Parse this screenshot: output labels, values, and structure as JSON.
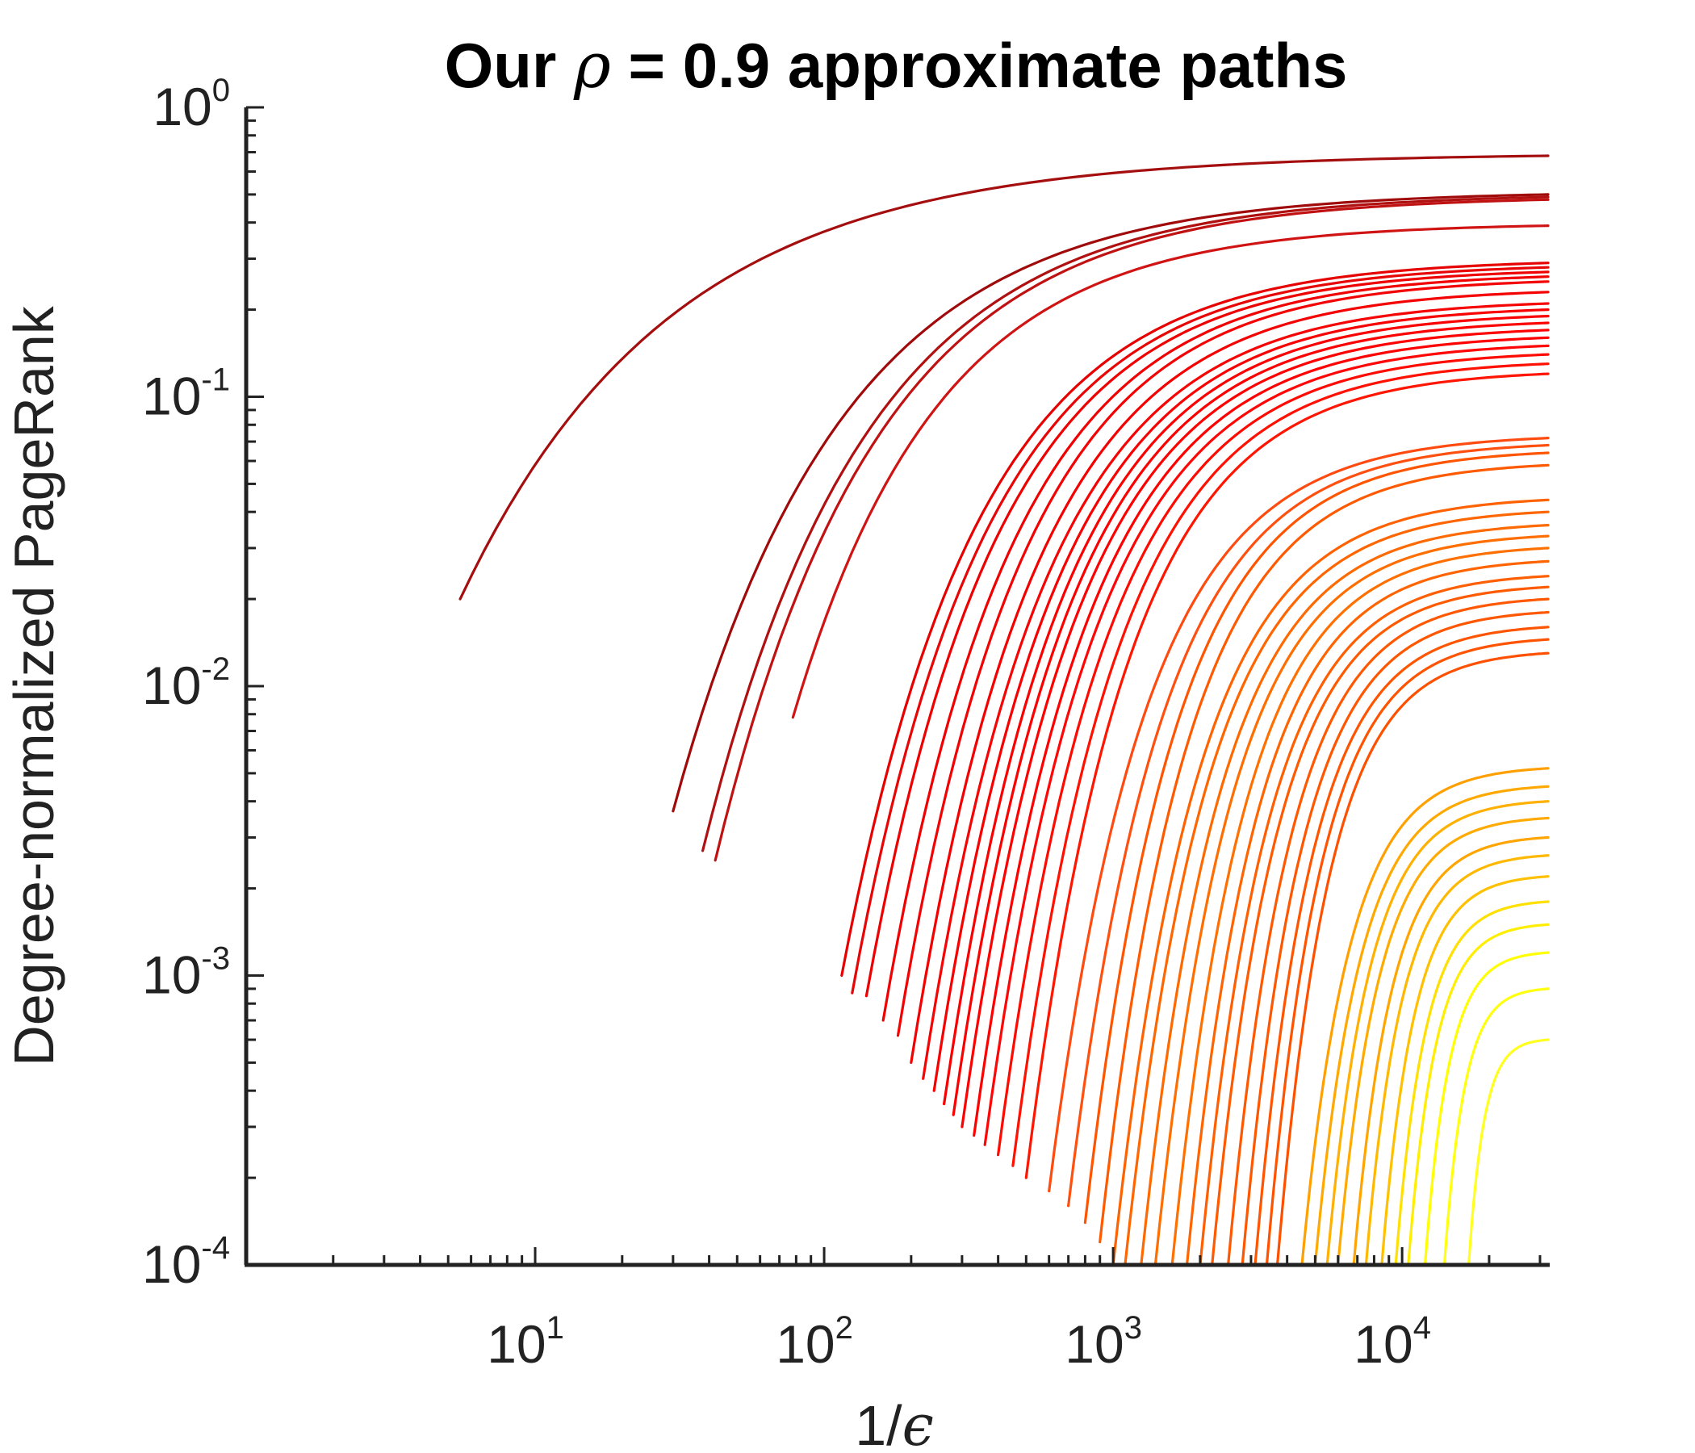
{
  "chart_data": {
    "type": "line",
    "title_parts": [
      "Our ",
      "ρ",
      " = 0.9 approximate paths"
    ],
    "xlabel_parts": [
      "1/",
      "ϵ"
    ],
    "ylabel": "Degree-normalized PageRank",
    "x_scale": "log",
    "y_scale": "log",
    "xlim": [
      1,
      32000
    ],
    "ylim": [
      0.0001,
      1
    ],
    "grid": false,
    "legend": "none",
    "x_ticks": [
      {
        "base": "10",
        "exp": "1",
        "value": 10
      },
      {
        "base": "10",
        "exp": "2",
        "value": 100
      },
      {
        "base": "10",
        "exp": "3",
        "value": 1000
      },
      {
        "base": "10",
        "exp": "4",
        "value": 10000
      }
    ],
    "y_ticks": [
      {
        "base": "10",
        "exp": "0",
        "value": 1
      },
      {
        "base": "10",
        "exp": "-1",
        "value": 0.1
      },
      {
        "base": "10",
        "exp": "-2",
        "value": 0.01
      },
      {
        "base": "10",
        "exp": "-3",
        "value": 0.001
      },
      {
        "base": "10",
        "exp": "-4",
        "value": 0.0001
      }
    ],
    "colormap": [
      "#8b0000",
      "#ff0000",
      "#ff5a00",
      "#ffa500",
      "#ffff00"
    ],
    "x_end": 32000,
    "series": [
      {
        "x_start": 5.5,
        "y_start": 0.02,
        "y_end": 0.68,
        "color": "#a50e0e"
      },
      {
        "x_start": 30,
        "y_start": 0.0037,
        "y_end": 0.5,
        "color": "#a00a0a"
      },
      {
        "x_start": 38,
        "y_start": 0.0027,
        "y_end": 0.49,
        "color": "#b01010"
      },
      {
        "x_start": 42,
        "y_start": 0.0025,
        "y_end": 0.48,
        "color": "#c01212"
      },
      {
        "x_start": 78,
        "y_start": 0.0078,
        "y_end": 0.39,
        "color": "#d01414"
      },
      {
        "x_start": 115,
        "y_start": 0.001,
        "y_end": 0.29,
        "color": "#e60000"
      },
      {
        "x_start": 125,
        "y_start": 0.00087,
        "y_end": 0.28,
        "color": "#e80505"
      },
      {
        "x_start": 140,
        "y_start": 0.00085,
        "y_end": 0.27,
        "color": "#ee0000"
      },
      {
        "x_start": 160,
        "y_start": 0.0007,
        "y_end": 0.26,
        "color": "#f00000"
      },
      {
        "x_start": 180,
        "y_start": 0.00062,
        "y_end": 0.25,
        "color": "#f20202"
      },
      {
        "x_start": 200,
        "y_start": 0.0005,
        "y_end": 0.23,
        "color": "#f40000"
      },
      {
        "x_start": 220,
        "y_start": 0.00044,
        "y_end": 0.21,
        "color": "#f60303"
      },
      {
        "x_start": 240,
        "y_start": 0.0004,
        "y_end": 0.2,
        "color": "#f80000"
      },
      {
        "x_start": 260,
        "y_start": 0.00036,
        "y_end": 0.19,
        "color": "#fa0000"
      },
      {
        "x_start": 280,
        "y_start": 0.00033,
        "y_end": 0.18,
        "color": "#fc0000"
      },
      {
        "x_start": 300,
        "y_start": 0.0003,
        "y_end": 0.17,
        "color": "#fe0000"
      },
      {
        "x_start": 330,
        "y_start": 0.00028,
        "y_end": 0.16,
        "color": "#ff0000"
      },
      {
        "x_start": 360,
        "y_start": 0.00026,
        "y_end": 0.15,
        "color": "#ff0505"
      },
      {
        "x_start": 400,
        "y_start": 0.00024,
        "y_end": 0.14,
        "color": "#ff0a00"
      },
      {
        "x_start": 450,
        "y_start": 0.00022,
        "y_end": 0.13,
        "color": "#ff1000"
      },
      {
        "x_start": 500,
        "y_start": 0.0002,
        "y_end": 0.12,
        "color": "#ff1500"
      },
      {
        "x_start": 600,
        "y_start": 0.00018,
        "y_end": 0.072,
        "color": "#ff4a10"
      },
      {
        "x_start": 700,
        "y_start": 0.00016,
        "y_end": 0.068,
        "color": "#ff5010"
      },
      {
        "x_start": 800,
        "y_start": 0.00014,
        "y_end": 0.064,
        "color": "#ff5500"
      },
      {
        "x_start": 900,
        "y_start": 0.00012,
        "y_end": 0.058,
        "color": "#ff5a00"
      },
      {
        "x_start": 1000,
        "y_start": 0.0001,
        "y_end": 0.044,
        "color": "#ff6200"
      },
      {
        "x_start": 1100,
        "y_start": 0.0001,
        "y_end": 0.04,
        "color": "#ff6600"
      },
      {
        "x_start": 1250,
        "y_start": 0.0001,
        "y_end": 0.036,
        "color": "#ff6a00"
      },
      {
        "x_start": 1400,
        "y_start": 0.0001,
        "y_end": 0.033,
        "color": "#ff6e00"
      },
      {
        "x_start": 1600,
        "y_start": 0.0001,
        "y_end": 0.03,
        "color": "#ff7000"
      },
      {
        "x_start": 1800,
        "y_start": 0.0001,
        "y_end": 0.027,
        "color": "#ff6400"
      },
      {
        "x_start": 2000,
        "y_start": 0.0001,
        "y_end": 0.024,
        "color": "#ff5f00"
      },
      {
        "x_start": 2200,
        "y_start": 0.0001,
        "y_end": 0.022,
        "color": "#ff5a00"
      },
      {
        "x_start": 2500,
        "y_start": 0.0001,
        "y_end": 0.02,
        "color": "#ff5800"
      },
      {
        "x_start": 2800,
        "y_start": 0.0001,
        "y_end": 0.018,
        "color": "#ff5600"
      },
      {
        "x_start": 3100,
        "y_start": 0.0001,
        "y_end": 0.016,
        "color": "#ff5500"
      },
      {
        "x_start": 3400,
        "y_start": 0.0001,
        "y_end": 0.0145,
        "color": "#ff5300"
      },
      {
        "x_start": 3700,
        "y_start": 0.0001,
        "y_end": 0.013,
        "color": "#ff5000"
      },
      {
        "x_start": 4500,
        "y_start": 0.0001,
        "y_end": 0.0052,
        "color": "#ffa000"
      },
      {
        "x_start": 5000,
        "y_start": 0.0001,
        "y_end": 0.0045,
        "color": "#ffa800"
      },
      {
        "x_start": 5500,
        "y_start": 0.0001,
        "y_end": 0.004,
        "color": "#ffb000"
      },
      {
        "x_start": 6000,
        "y_start": 0.0001,
        "y_end": 0.0035,
        "color": "#ffaa00"
      },
      {
        "x_start": 6800,
        "y_start": 0.0001,
        "y_end": 0.003,
        "color": "#ffa500"
      },
      {
        "x_start": 7500,
        "y_start": 0.0001,
        "y_end": 0.0026,
        "color": "#ffb800"
      },
      {
        "x_start": 8500,
        "y_start": 0.0001,
        "y_end": 0.0022,
        "color": "#ffc000"
      },
      {
        "x_start": 9500,
        "y_start": 0.0001,
        "y_end": 0.0018,
        "color": "#ffe000"
      },
      {
        "x_start": 10500,
        "y_start": 0.0001,
        "y_end": 0.0015,
        "color": "#ffee00"
      },
      {
        "x_start": 12000,
        "y_start": 0.0001,
        "y_end": 0.0012,
        "color": "#ffff00"
      },
      {
        "x_start": 14000,
        "y_start": 0.0001,
        "y_end": 0.0009,
        "color": "#ffff10"
      },
      {
        "x_start": 17000,
        "y_start": 0.0001,
        "y_end": 0.0006,
        "color": "#ffff20"
      }
    ]
  }
}
